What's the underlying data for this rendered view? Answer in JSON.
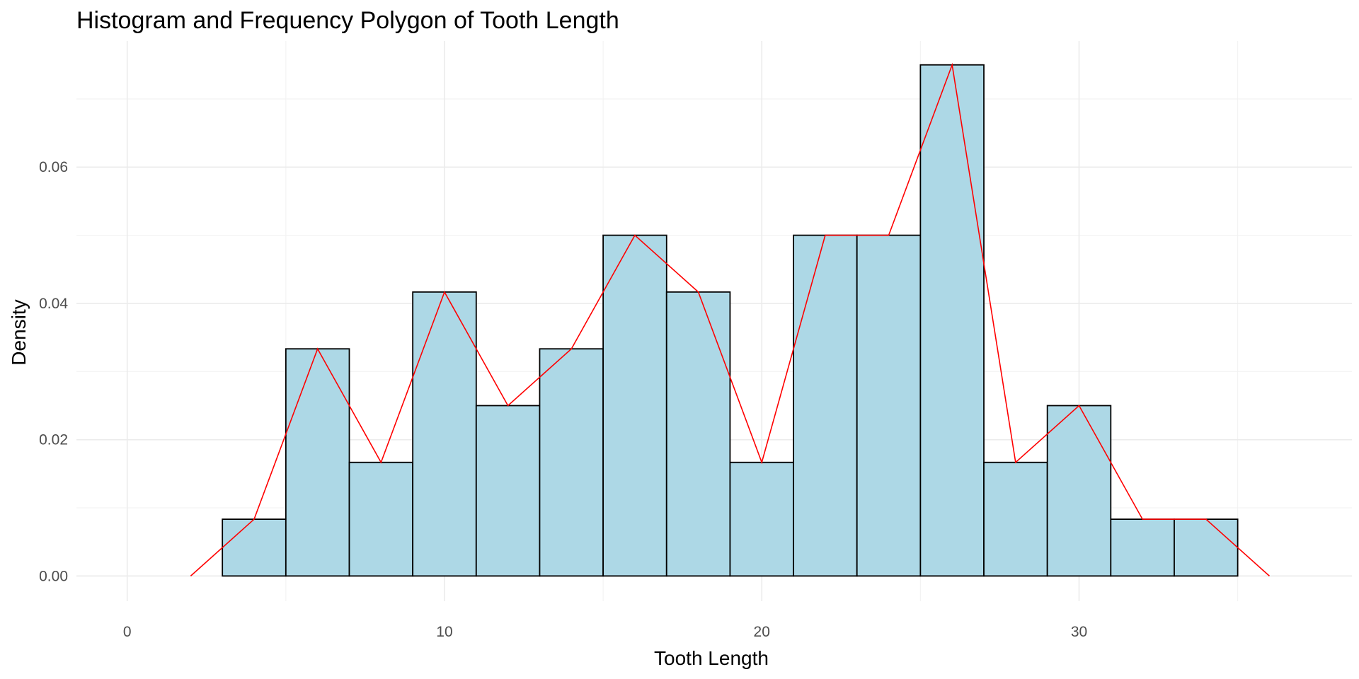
{
  "chart_data": {
    "type": "bar",
    "title": "Histogram and Frequency Polygon of Tooth Length",
    "xlabel": "Tooth Length",
    "ylabel": "Density",
    "xlim": [
      -1.6,
      38.6
    ],
    "ylim": [
      -0.0037,
      0.0785
    ],
    "x_ticks": [
      0,
      10,
      20,
      30
    ],
    "x_tick_labels": [
      "0",
      "10",
      "20",
      "30"
    ],
    "y_ticks": [
      0.0,
      0.02,
      0.04,
      0.06
    ],
    "y_tick_labels": [
      "0.00",
      "0.02",
      "0.04",
      "0.06"
    ],
    "grid": true,
    "histogram": {
      "bins": [
        {
          "xmin": 3,
          "xmax": 5,
          "density": 0.00833
        },
        {
          "xmin": 5,
          "xmax": 7,
          "density": 0.03333
        },
        {
          "xmin": 7,
          "xmax": 9,
          "density": 0.01667
        },
        {
          "xmin": 9,
          "xmax": 11,
          "density": 0.04167
        },
        {
          "xmin": 11,
          "xmax": 13,
          "density": 0.025
        },
        {
          "xmin": 13,
          "xmax": 15,
          "density": 0.03333
        },
        {
          "xmin": 15,
          "xmax": 17,
          "density": 0.05
        },
        {
          "xmin": 17,
          "xmax": 19,
          "density": 0.04167
        },
        {
          "xmin": 19,
          "xmax": 21,
          "density": 0.01667
        },
        {
          "xmin": 21,
          "xmax": 23,
          "density": 0.05
        },
        {
          "xmin": 23,
          "xmax": 25,
          "density": 0.05
        },
        {
          "xmin": 25,
          "xmax": 27,
          "density": 0.075
        },
        {
          "xmin": 27,
          "xmax": 29,
          "density": 0.01667
        },
        {
          "xmin": 29,
          "xmax": 31,
          "density": 0.025
        },
        {
          "xmin": 31,
          "xmax": 33,
          "density": 0.00833
        },
        {
          "xmin": 33,
          "xmax": 35,
          "density": 0.00833
        }
      ],
      "fill": "#add8e6",
      "outline": "#000000"
    },
    "frequency_polygon": {
      "x": [
        2,
        4,
        6,
        8,
        10,
        12,
        14,
        16,
        18,
        20,
        22,
        24,
        26,
        28,
        30,
        32,
        34,
        36
      ],
      "y": [
        0,
        0.00833,
        0.03333,
        0.01667,
        0.04167,
        0.025,
        0.03333,
        0.05,
        0.04167,
        0.01667,
        0.05,
        0.05,
        0.075,
        0.01667,
        0.025,
        0.00833,
        0.00833,
        0
      ],
      "color": "#ff0000"
    }
  }
}
